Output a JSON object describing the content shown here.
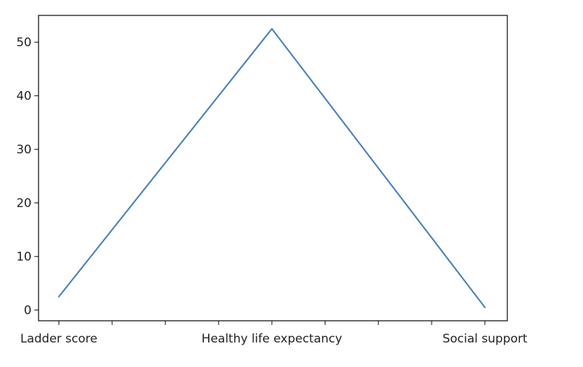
{
  "chart_data": {
    "type": "line",
    "title": "",
    "xlabel": "",
    "ylabel": "",
    "categories": [
      "Ladder score",
      "Healthy life expectancy",
      "Social support"
    ],
    "x_minor_ticks": 4,
    "series": [
      {
        "values": [
          2.5,
          52.5,
          0.5
        ],
        "color": "#4c82b8"
      }
    ],
    "ylim": [
      -2,
      55
    ],
    "yticks": [
      0,
      10,
      20,
      30,
      40,
      50
    ],
    "grid": false,
    "legend": "none"
  }
}
